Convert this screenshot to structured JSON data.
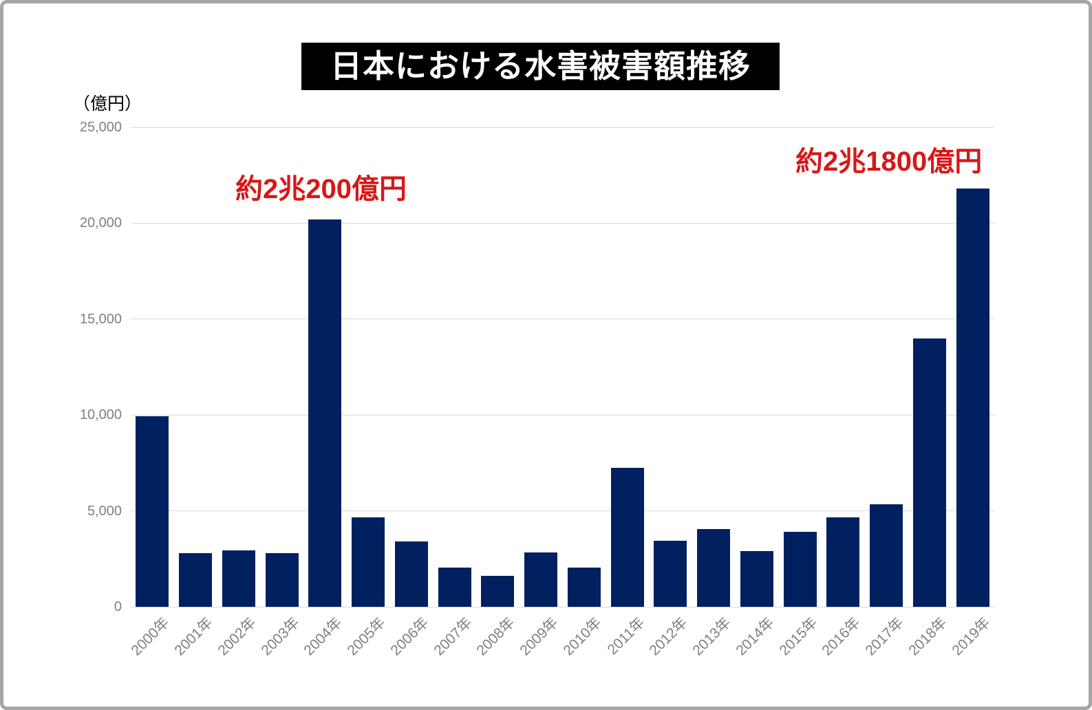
{
  "title": {
    "text": "日本における水害被害額推移"
  },
  "y_axis": {
    "unit_label": "（億円）",
    "tick_labels": [
      "0",
      "5,000",
      "10,000",
      "15,000",
      "20,000",
      "25,000"
    ]
  },
  "annotations": {
    "peak_2004": "約2兆200億円",
    "peak_2019": "約2兆1800億円"
  },
  "colors": {
    "bar": "#002060",
    "grid": "#d9d9d9",
    "axis_text": "#7f7f7f",
    "annotation": "#d81717",
    "title_bg": "#000000",
    "title_text": "#ffffff",
    "frame_border": "#a6a6a6"
  },
  "chart_data": {
    "type": "bar",
    "title": "日本における水害被害額推移",
    "ylabel": "（億円）",
    "xlabel": "",
    "categories": [
      "2000年",
      "2001年",
      "2002年",
      "2003年",
      "2004年",
      "2005年",
      "2006年",
      "2007年",
      "2008年",
      "2009年",
      "2010年",
      "2011年",
      "2012年",
      "2013年",
      "2014年",
      "2015年",
      "2016年",
      "2017年",
      "2018年",
      "2019年"
    ],
    "values": [
      9950,
      2800,
      2950,
      2800,
      20200,
      4650,
      3400,
      2050,
      1600,
      2850,
      2050,
      7250,
      3450,
      4050,
      2900,
      3900,
      4650,
      5350,
      14000,
      21800
    ],
    "ylim": [
      0,
      25000
    ],
    "yticks": [
      0,
      5000,
      10000,
      15000,
      20000,
      25000
    ],
    "grid": true,
    "legend": false,
    "bar_color": "#002060",
    "annotations": [
      {
        "target": "2004年",
        "text": "約2兆200億円"
      },
      {
        "target": "2019年",
        "text": "約2兆1800億円"
      }
    ]
  }
}
